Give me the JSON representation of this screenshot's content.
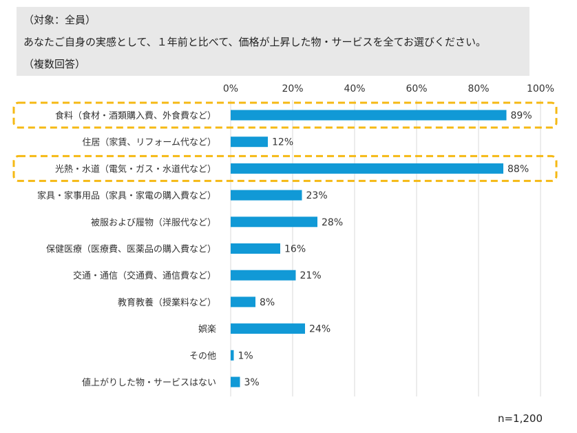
{
  "header": {
    "target": "（対象：全員）",
    "question": "あなたご自身の実感として、１年前と比べて、価格が上昇した物・サービスを全てお選びください。",
    "answer_type": "（複数回答）"
  },
  "footer": {
    "sample_size": "n=1,200"
  },
  "colors": {
    "bar": "#1199d6",
    "highlight": "#f5b914",
    "grid": "#d9d9d9",
    "header_bg": "#e8e8e8"
  },
  "chart_data": {
    "type": "bar",
    "orientation": "horizontal",
    "title": "",
    "xlabel": "",
    "ylabel": "",
    "xlim": [
      0,
      100
    ],
    "ticks": [
      "0%",
      "20%",
      "40%",
      "60%",
      "80%",
      "100%"
    ],
    "tick_values": [
      0,
      20,
      40,
      60,
      80,
      100
    ],
    "categories": [
      "食料（食材・酒類購入費、外食費など）",
      "住居（家賃、リフォーム代など）",
      "光熱・水道（電気・ガス・水道代など）",
      "家具・家事用品（家具・家電の購入費など）",
      "被服および履物（洋服代など）",
      "保健医療（医療費、医薬品の購入費など）",
      "交通・通信（交通費、通信費など）",
      "教育教養（授業料など）",
      "娯楽",
      "その他",
      "値上がりした物・サービスはない"
    ],
    "values": [
      89,
      12,
      88,
      23,
      28,
      16,
      21,
      8,
      24,
      1,
      3
    ],
    "value_labels": [
      "89%",
      "12%",
      "88%",
      "23%",
      "28%",
      "16%",
      "21%",
      "8%",
      "24%",
      "1%",
      "3%"
    ],
    "highlighted": [
      0,
      2
    ]
  }
}
